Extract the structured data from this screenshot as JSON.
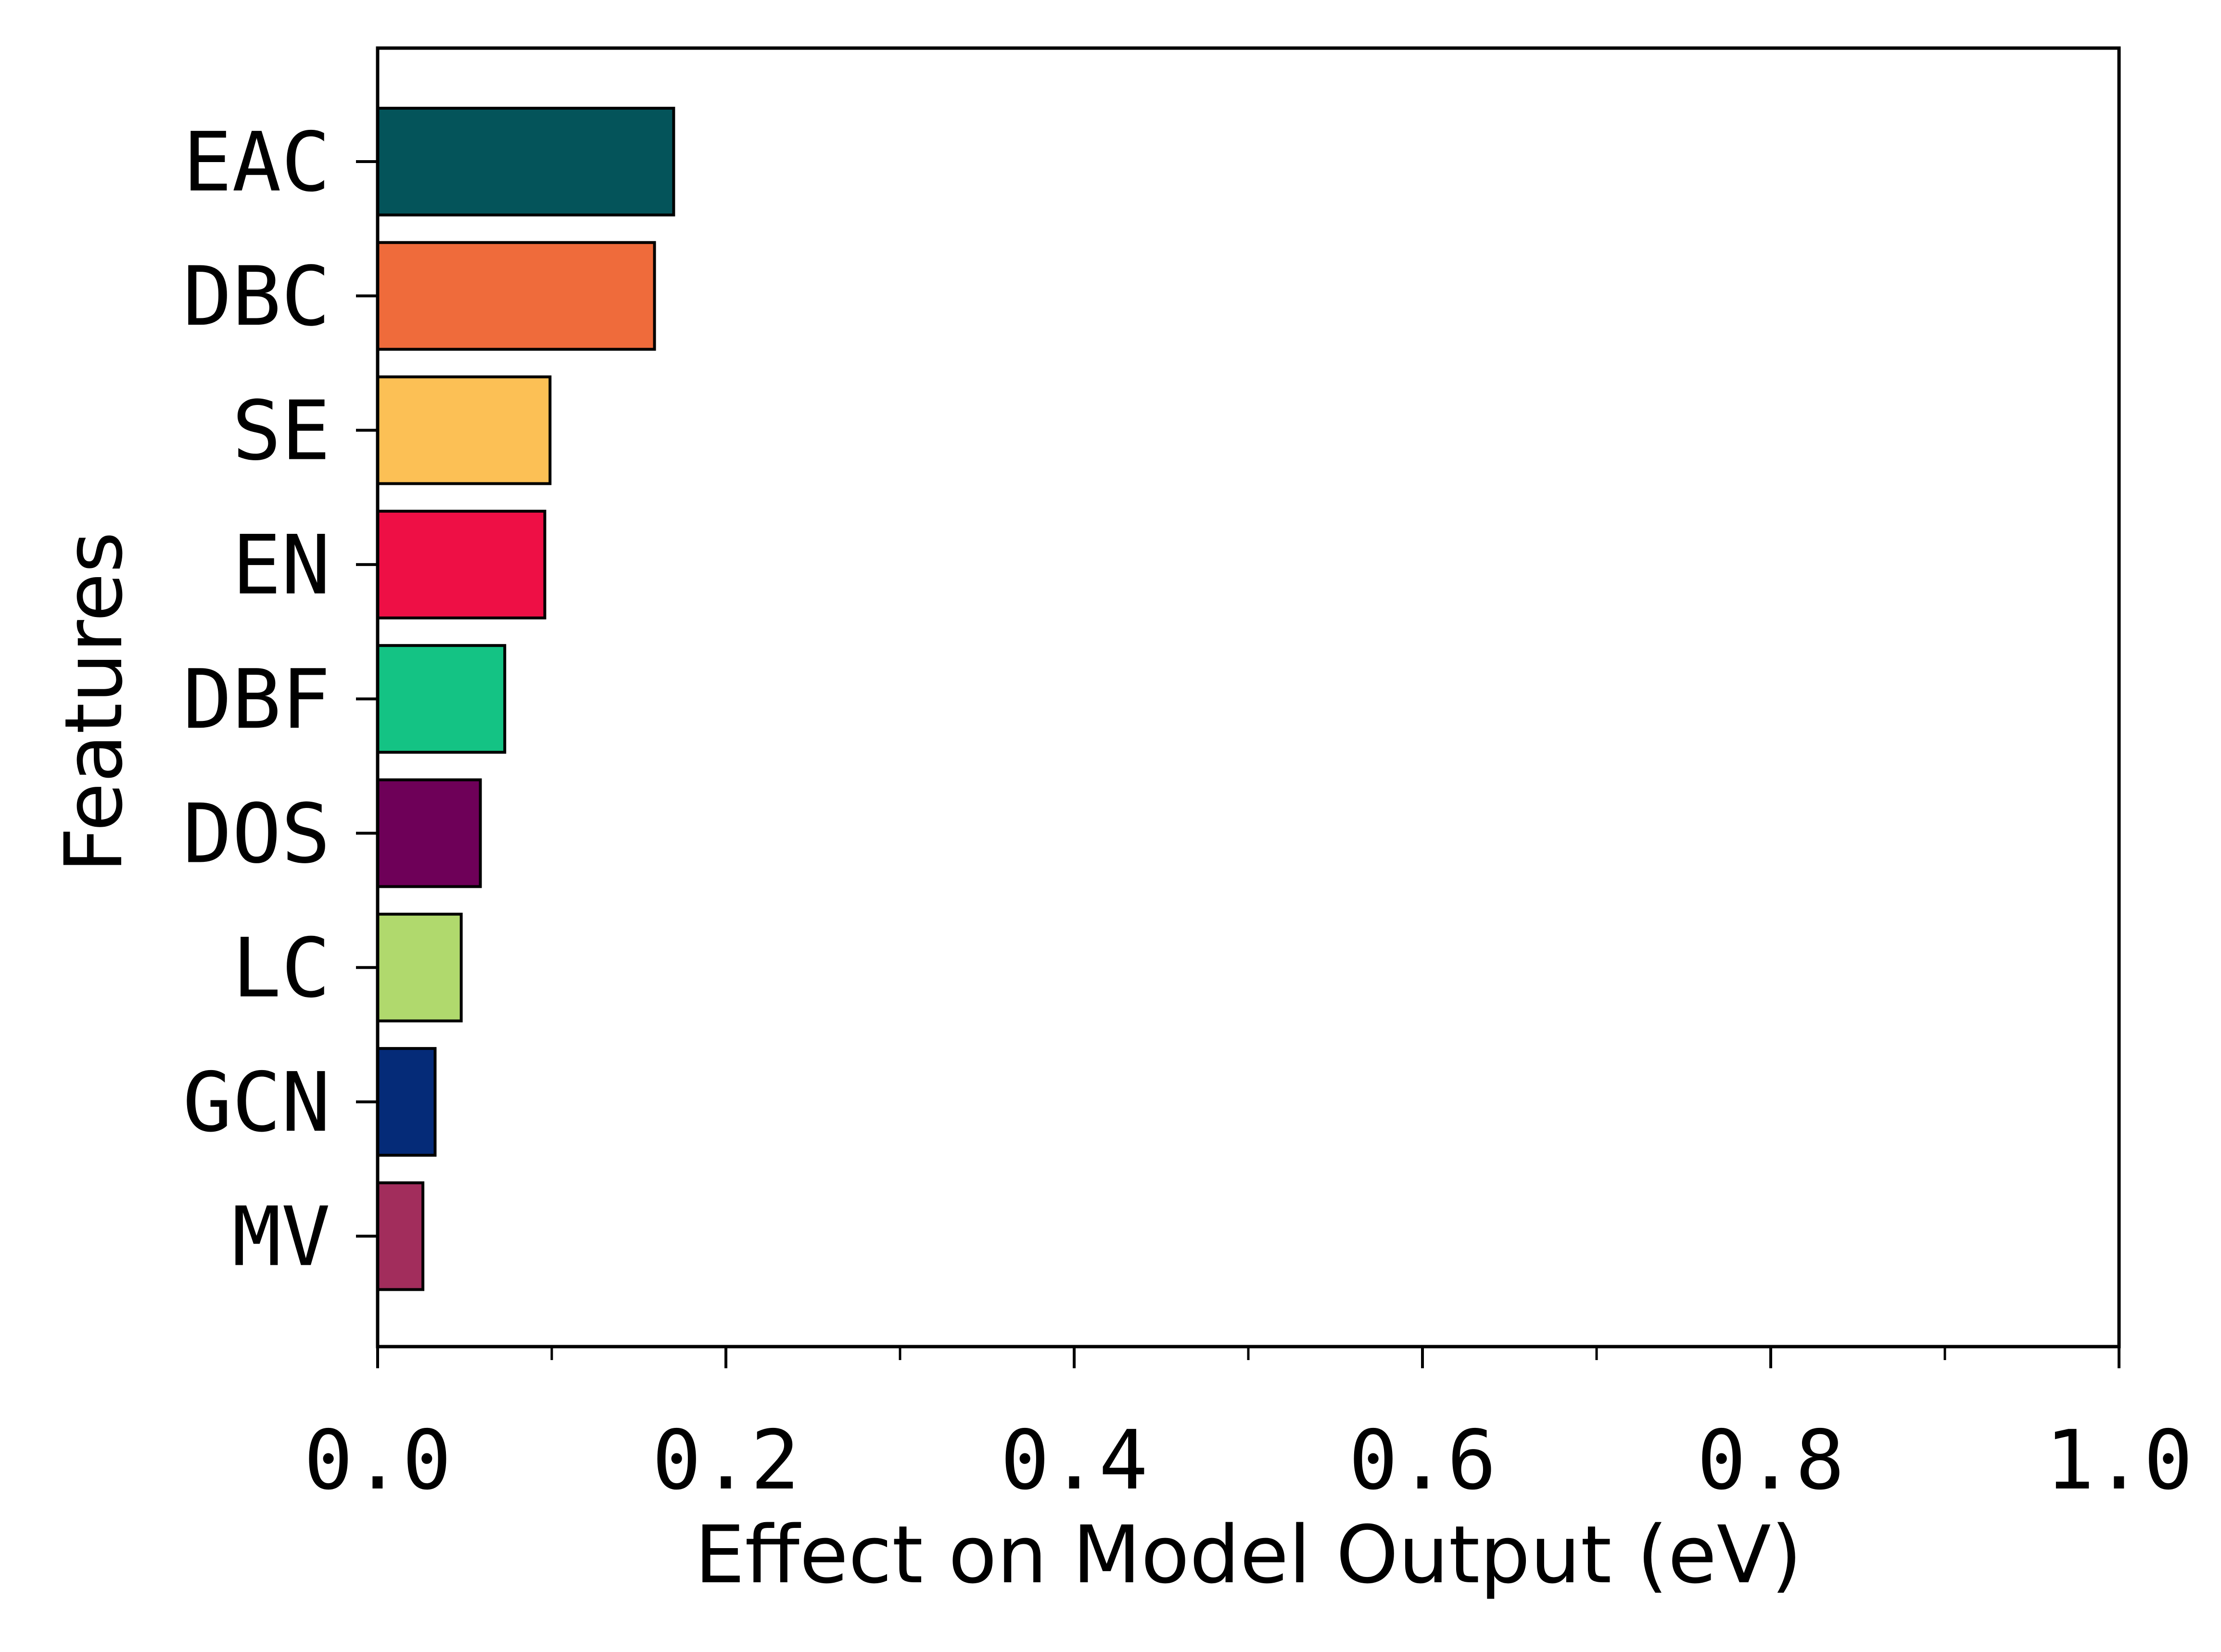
{
  "chart_data": {
    "type": "bar",
    "orientation": "horizontal",
    "title": "",
    "xlabel": "Effect on Model Output (eV)",
    "ylabel": "Features",
    "xlim": [
      0,
      1.0
    ],
    "xticks": [
      "0.0",
      "0.2",
      "0.4",
      "0.6",
      "0.8",
      "1.0"
    ],
    "x_minor_step": 0.1,
    "grid": false,
    "categories": [
      "EAC",
      "DBC",
      "SE",
      "EN",
      "DBF",
      "DOS",
      "LC",
      "GCN",
      "MV"
    ],
    "values": [
      0.17,
      0.159,
      0.099,
      0.096,
      0.073,
      0.059,
      0.048,
      0.033,
      0.026
    ],
    "colors": [
      "#04545a",
      "#ef6b3b",
      "#fcc055",
      "#ee0f45",
      "#14c384",
      "#6e0058",
      "#b0d96d",
      "#052b78",
      "#a22d5c"
    ]
  }
}
